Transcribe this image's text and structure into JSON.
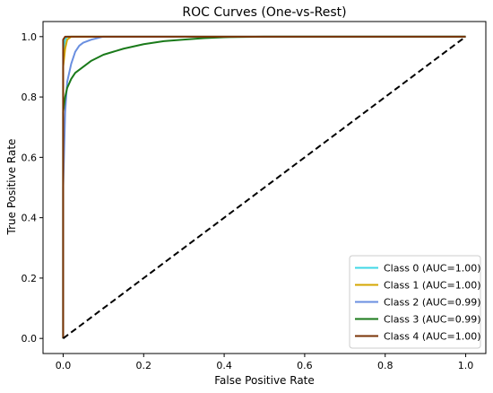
{
  "chart_data": {
    "type": "line",
    "title": "ROC Curves (One-vs-Rest)",
    "xlabel": "False Positive Rate",
    "ylabel": "True Positive Rate",
    "xlim": [
      -0.05,
      1.05
    ],
    "ylim": [
      -0.05,
      1.05
    ],
    "xticks": [
      0.0,
      0.2,
      0.4,
      0.6,
      0.8,
      1.0
    ],
    "yticks": [
      0.0,
      0.2,
      0.4,
      0.6,
      0.8,
      1.0
    ],
    "xtick_labels": [
      "0.0",
      "0.2",
      "0.4",
      "0.6",
      "0.8",
      "1.0"
    ],
    "ytick_labels": [
      "0.0",
      "0.2",
      "0.4",
      "0.6",
      "0.8",
      "1.0"
    ],
    "grid": false,
    "legend_position": "lower-right",
    "series": [
      {
        "name": "Class 0 (AUC=1.00)",
        "color": "#3fd7e6",
        "x": [
          0.0,
          0.0,
          0.005,
          0.01,
          1.0
        ],
        "y": [
          0.0,
          0.95,
          0.99,
          1.0,
          1.0
        ]
      },
      {
        "name": "Class 1 (AUC=1.00)",
        "color": "#d4a600",
        "x": [
          0.0,
          0.0,
          0.005,
          0.01,
          0.02,
          1.0
        ],
        "y": [
          0.0,
          0.9,
          0.96,
          0.99,
          1.0,
          1.0
        ]
      },
      {
        "name": "Class 2 (AUC=0.99)",
        "color": "#6a8fe0",
        "x": [
          0.0,
          0.0,
          0.005,
          0.01,
          0.02,
          0.03,
          0.04,
          0.05,
          0.07,
          0.1,
          1.0
        ],
        "y": [
          0.0,
          0.5,
          0.75,
          0.85,
          0.91,
          0.95,
          0.97,
          0.98,
          0.99,
          1.0,
          1.0
        ]
      },
      {
        "name": "Class 3 (AUC=0.99)",
        "color": "#1a7a1a",
        "x": [
          0.0,
          0.0,
          0.005,
          0.01,
          0.02,
          0.03,
          0.05,
          0.07,
          0.1,
          0.15,
          0.2,
          0.25,
          0.3,
          0.35,
          0.4,
          0.5,
          1.0
        ],
        "y": [
          0.0,
          0.75,
          0.8,
          0.83,
          0.86,
          0.88,
          0.9,
          0.92,
          0.94,
          0.96,
          0.975,
          0.985,
          0.99,
          0.995,
          0.998,
          1.0,
          1.0
        ]
      },
      {
        "name": "Class 4 (AUC=1.00)",
        "color": "#7a3306",
        "x": [
          0.0,
          0.0,
          0.005,
          1.0
        ],
        "y": [
          0.0,
          0.99,
          1.0,
          1.0
        ]
      },
      {
        "name": "",
        "color": "#000000",
        "dashed": true,
        "x": [
          0.0,
          1.0
        ],
        "y": [
          0.0,
          1.0
        ]
      }
    ]
  }
}
